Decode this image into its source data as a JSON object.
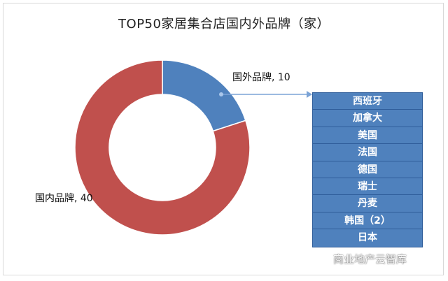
{
  "chart_data": {
    "type": "pie",
    "style": "donut",
    "title": "TOP50家居集合店国内外品牌（家）",
    "slices": [
      {
        "label": "国外品牌",
        "value": 10,
        "color": "#4f81bd"
      },
      {
        "label": "国内品牌",
        "value": 40,
        "color": "#c0504d"
      }
    ],
    "data_labels": [
      {
        "text": "国外品牌, 10"
      },
      {
        "text": "国内品牌, 40"
      }
    ],
    "callout": {
      "from": "国外品牌",
      "items": [
        "西班牙",
        "加拿大",
        "美国",
        "法国",
        "德国",
        "瑞士",
        "丹麦",
        "韩国（2）",
        "日本"
      ]
    }
  },
  "watermark": {
    "text": "商业地产云智库",
    "icon": "wechat-icon"
  }
}
